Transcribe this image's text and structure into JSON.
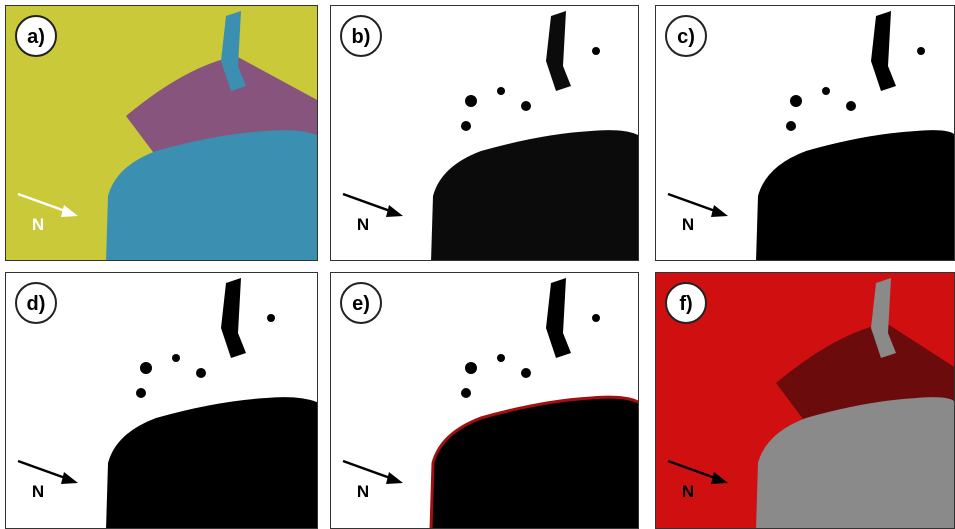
{
  "panels": [
    {
      "label": "a)",
      "north": "N"
    },
    {
      "label": "b)",
      "north": "N"
    },
    {
      "label": "c)",
      "north": "N"
    },
    {
      "label": "d)",
      "north": "N"
    },
    {
      "label": "e)",
      "north": "N"
    },
    {
      "label": "f)",
      "north": "N"
    }
  ]
}
